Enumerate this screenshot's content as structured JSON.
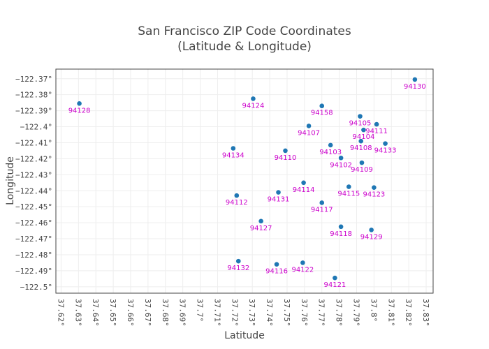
{
  "chart_data": {
    "type": "scatter",
    "title_lines": [
      "San Francisco ZIP Code Coordinates",
      "(Latitude & Longitude)"
    ],
    "xlabel": "Latitude",
    "ylabel": "Longitude",
    "xlim": [
      37.617,
      37.834
    ],
    "ylim": [
      -122.504,
      -122.364
    ],
    "x_ticks": [
      37.62,
      37.63,
      37.64,
      37.65,
      37.66,
      37.67,
      37.68,
      37.69,
      37.7,
      37.71,
      37.72,
      37.73,
      37.74,
      37.75,
      37.76,
      37.77,
      37.78,
      37.79,
      37.8,
      37.81,
      37.82,
      37.83
    ],
    "x_tick_labels": [
      "37.62°",
      "37.63°",
      "37.64°",
      "37.65°",
      "37.66°",
      "37.67°",
      "37.68°",
      "37.69°",
      "37.7°",
      "37.71°",
      "37.72°",
      "37.73°",
      "37.74°",
      "37.75°",
      "37.76°",
      "37.77°",
      "37.78°",
      "37.79°",
      "37.8°",
      "37.81°",
      "37.82°",
      "37.83°"
    ],
    "y_ticks": [
      -122.37,
      -122.38,
      -122.39,
      -122.4,
      -122.41,
      -122.42,
      -122.43,
      -122.44,
      -122.45,
      -122.46,
      -122.47,
      -122.48,
      -122.49,
      -122.5
    ],
    "y_tick_labels": [
      "−122.37°",
      "−122.38°",
      "−122.39°",
      "−122.4°",
      "−122.41°",
      "−122.42°",
      "−122.43°",
      "−122.44°",
      "−122.45°",
      "−122.46°",
      "−122.47°",
      "−122.48°",
      "−122.49°",
      "−122.5°"
    ],
    "grid": true,
    "marker_color": "#1f77b4",
    "label_color": "#cc00cc",
    "points": [
      {
        "label": "94128",
        "x": 37.6305,
        "y": -122.3855
      },
      {
        "label": "94124",
        "x": 37.7305,
        "y": -122.3825
      },
      {
        "label": "94158",
        "x": 37.77,
        "y": -122.387
      },
      {
        "label": "94105",
        "x": 37.792,
        "y": -122.3935
      },
      {
        "label": "94107",
        "x": 37.7625,
        "y": -122.3995
      },
      {
        "label": "94111",
        "x": 37.8015,
        "y": -122.3985
      },
      {
        "label": "94104",
        "x": 37.794,
        "y": -122.402
      },
      {
        "label": "94130",
        "x": 37.8235,
        "y": -122.3705
      },
      {
        "label": "94103",
        "x": 37.775,
        "y": -122.4115
      },
      {
        "label": "94108",
        "x": 37.7925,
        "y": -122.409
      },
      {
        "label": "94133",
        "x": 37.8065,
        "y": -122.4105
      },
      {
        "label": "94134",
        "x": 37.719,
        "y": -122.4135
      },
      {
        "label": "94110",
        "x": 37.749,
        "y": -122.415
      },
      {
        "label": "94102",
        "x": 37.781,
        "y": -122.4195
      },
      {
        "label": "94109",
        "x": 37.793,
        "y": -122.4225
      },
      {
        "label": "94114",
        "x": 37.7595,
        "y": -122.435
      },
      {
        "label": "94115",
        "x": 37.7855,
        "y": -122.4375
      },
      {
        "label": "94123",
        "x": 37.8,
        "y": -122.438
      },
      {
        "label": "94112",
        "x": 37.721,
        "y": -122.443
      },
      {
        "label": "94131",
        "x": 37.745,
        "y": -122.441
      },
      {
        "label": "94117",
        "x": 37.77,
        "y": -122.4475
      },
      {
        "label": "94127",
        "x": 37.735,
        "y": -122.459
      },
      {
        "label": "94118",
        "x": 37.781,
        "y": -122.4625
      },
      {
        "label": "94129",
        "x": 37.7985,
        "y": -122.4645
      },
      {
        "label": "94132",
        "x": 37.722,
        "y": -122.484
      },
      {
        "label": "94116",
        "x": 37.744,
        "y": -122.486
      },
      {
        "label": "94122",
        "x": 37.759,
        "y": -122.485
      },
      {
        "label": "94121",
        "x": 37.7775,
        "y": -122.4945
      }
    ]
  }
}
